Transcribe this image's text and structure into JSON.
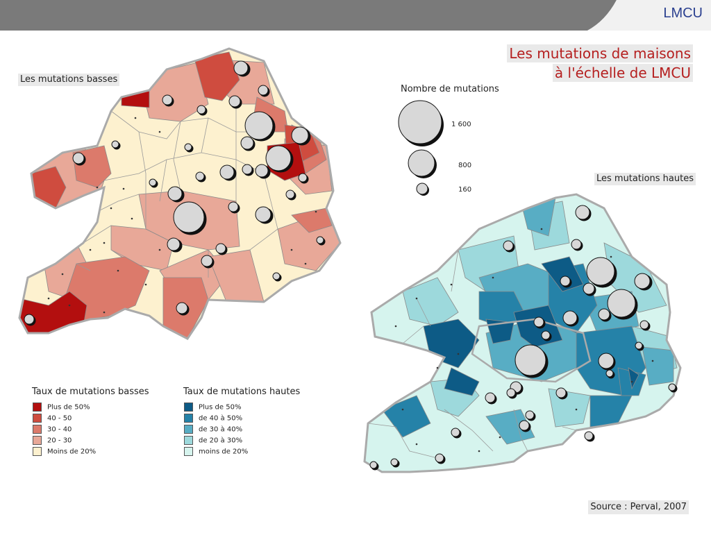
{
  "header": {
    "brand": "LMCU",
    "bar_color": "#7a7a7a"
  },
  "title": {
    "line1": "Les mutations de maisons",
    "line2": "à l'échelle de LMCU"
  },
  "maps": {
    "low": {
      "label": "Les mutations basses"
    },
    "high": {
      "label": "Les mutations hautes"
    }
  },
  "bubble_legend": {
    "title": "Nombre de mutations",
    "sizes": [
      {
        "value": "1 600"
      },
      {
        "value": "800"
      },
      {
        "value": "160"
      }
    ]
  },
  "legend_low": {
    "title": "Taux de mutations basses",
    "items": [
      {
        "label": "Plus de 50%",
        "color": "#b30f0f"
      },
      {
        "label": "40 - 50",
        "color": "#cf4c3f"
      },
      {
        "label": "30 - 40",
        "color": "#dc7a6b"
      },
      {
        "label": "20 - 30",
        "color": "#e8a898"
      },
      {
        "label": "Moins de 20%",
        "color": "#fdf1cf"
      }
    ]
  },
  "legend_high": {
    "title": "Taux de mutations hautes",
    "items": [
      {
        "label": "Plus de 50%",
        "color": "#0d5b86"
      },
      {
        "label": "de 40 à 50%",
        "color": "#2582a8"
      },
      {
        "label": "de 30 à 40%",
        "color": "#58adc4"
      },
      {
        "label": "de 20 à 30%",
        "color": "#9dd9dc"
      },
      {
        "label": "moins de 20%",
        "color": "#d6f4ee"
      }
    ]
  },
  "source": "Source : Perval, 2007"
}
